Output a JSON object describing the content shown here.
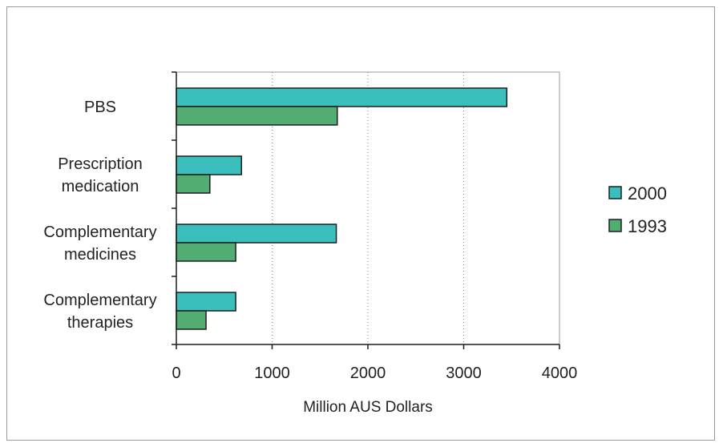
{
  "chart_data": {
    "type": "bar",
    "orientation": "horizontal",
    "categories": [
      [
        "PBS"
      ],
      [
        "Prescription",
        "medication"
      ],
      [
        "Complementary",
        "medicines"
      ],
      [
        "Complementary",
        "therapies"
      ]
    ],
    "series": [
      {
        "name": "2000",
        "color": "#3bbfbd",
        "values": [
          3450,
          680,
          1670,
          620
        ]
      },
      {
        "name": "1993",
        "color": "#52ad72",
        "values": [
          1680,
          350,
          620,
          310
        ]
      }
    ],
    "xlabel": "Million AUS Dollars",
    "ylabel": "",
    "xlim": [
      0,
      4000
    ],
    "xticks": [
      0,
      1000,
      2000,
      3000,
      4000
    ],
    "grid": "vertical-dotted",
    "legend_position": "right",
    "plot_background": "#ffffff",
    "bar_outline": "#1e1e1e"
  }
}
